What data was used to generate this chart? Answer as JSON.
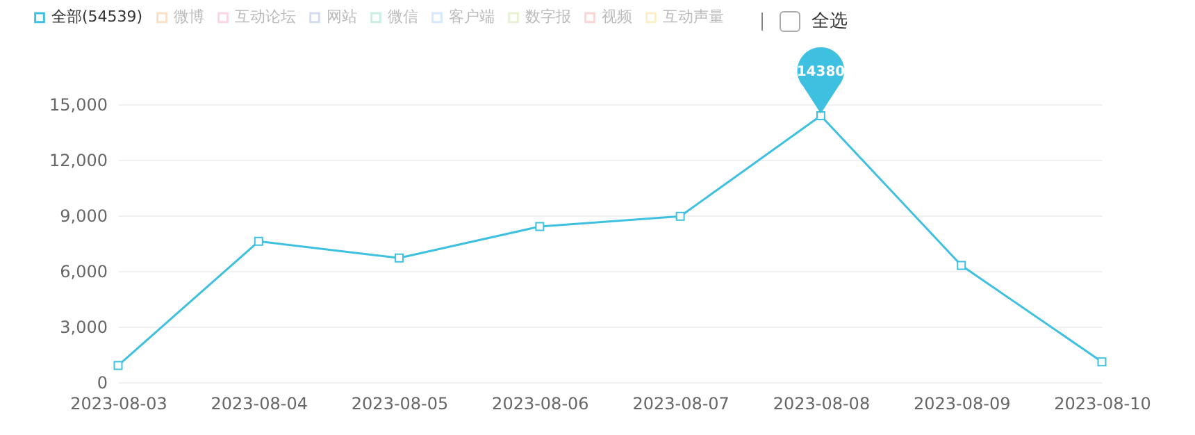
{
  "chart_data": {
    "type": "line",
    "categories": [
      "2023-08-03",
      "2023-08-04",
      "2023-08-05",
      "2023-08-06",
      "2023-08-07",
      "2023-08-08",
      "2023-08-09",
      "2023-08-10"
    ],
    "series": [
      {
        "name": "全部(54539)",
        "color": "#3ec1e0",
        "values": [
          900,
          7600,
          6700,
          8400,
          8950,
          14380,
          6300,
          1100
        ]
      },
      {
        "name": "微博",
        "color": "#fbe0c8",
        "values": [
          null,
          null,
          null,
          null,
          null,
          null,
          null,
          null
        ]
      },
      {
        "name": "互动论坛",
        "color": "#fcd6e0",
        "values": [
          null,
          null,
          null,
          null,
          null,
          null,
          null,
          null
        ]
      },
      {
        "name": "网站",
        "color": "#d5dcef",
        "values": [
          null,
          null,
          null,
          null,
          null,
          null,
          null,
          null
        ]
      },
      {
        "name": "微信",
        "color": "#c8efe0",
        "values": [
          null,
          null,
          null,
          null,
          null,
          null,
          null,
          null
        ]
      },
      {
        "name": "客户端",
        "color": "#d6e8fb",
        "values": [
          null,
          null,
          null,
          null,
          null,
          null,
          null,
          null
        ]
      },
      {
        "name": "数字报",
        "color": "#e6f2d2",
        "values": [
          null,
          null,
          null,
          null,
          null,
          null,
          null,
          null
        ]
      },
      {
        "name": "视频",
        "color": "#fbd6d6",
        "values": [
          null,
          null,
          null,
          null,
          null,
          null,
          null,
          null
        ]
      },
      {
        "name": "互动声量",
        "color": "#fdf0c8",
        "values": [
          null,
          null,
          null,
          null,
          null,
          null,
          null,
          null
        ]
      }
    ],
    "ylim": [
      0,
      15000
    ],
    "yticks": [
      0,
      {
        "value": 3000,
        "label": "3,000"
      },
      {
        "value": 6000,
        "label": "6,000"
      },
      {
        "value": 9000,
        "label": "9,000"
      },
      {
        "value": 12000,
        "label": "12,000"
      },
      {
        "value": 15000,
        "label": "15,000"
      }
    ],
    "grid": "y",
    "legend": "top left",
    "marker": "square",
    "line_style": "solid",
    "annotations": [
      {
        "text": "14380",
        "x": "2023-08-08",
        "y": 14380
      },
      "全选"
    ]
  }
}
